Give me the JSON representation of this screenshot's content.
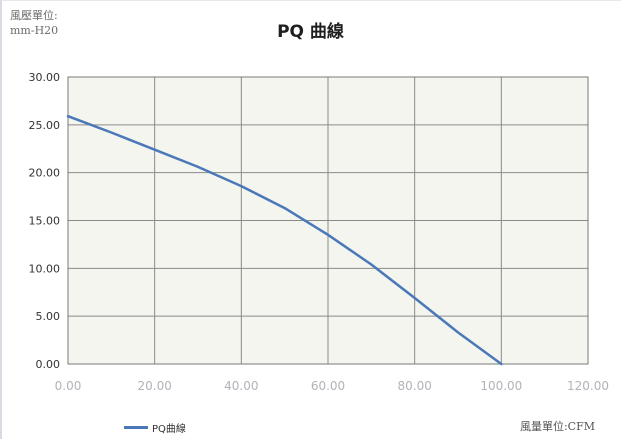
{
  "chart_data": {
    "type": "line",
    "title": "PQ 曲線",
    "ylabel": "風壓單位:",
    "ylabel_unit": "mm-H20",
    "xlabel": "風量單位:CFM",
    "xlim": [
      0,
      120
    ],
    "ylim": [
      0,
      30
    ],
    "x_ticks": [
      "0.00",
      "20.00",
      "40.00",
      "60.00",
      "80.00",
      "100.00",
      "120.00"
    ],
    "y_ticks": [
      "0.00",
      "5.00",
      "10.00",
      "15.00",
      "20.00",
      "25.00",
      "30.00"
    ],
    "grid": true,
    "legend_position": "bottom-left",
    "series": [
      {
        "name": "PQ曲線",
        "color": "#4a78b8",
        "x": [
          0,
          10,
          20,
          30,
          40,
          50,
          60,
          70,
          80,
          90,
          100
        ],
        "y": [
          25.9,
          24.2,
          22.4,
          20.6,
          18.6,
          16.3,
          13.5,
          10.4,
          6.9,
          3.3,
          0.0
        ]
      }
    ]
  }
}
